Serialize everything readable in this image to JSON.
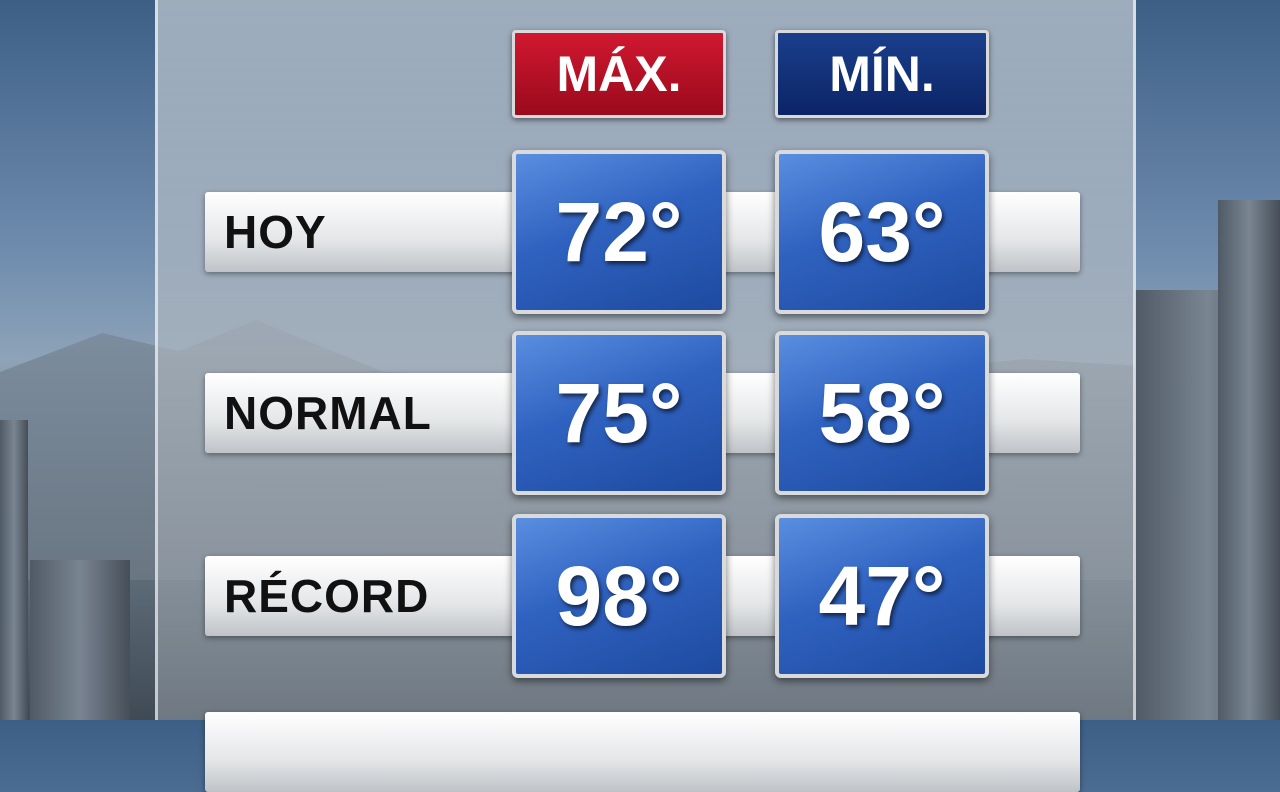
{
  "header": {
    "max": "MÁX.",
    "min": "MÍN."
  },
  "table": {
    "rows": [
      {
        "label": "HOY",
        "max": "72°",
        "min": "63°"
      },
      {
        "label": "NORMAL",
        "max": "75°",
        "min": "58°"
      },
      {
        "label": "RÉCORD",
        "max": "98°",
        "min": "47°"
      }
    ]
  }
}
